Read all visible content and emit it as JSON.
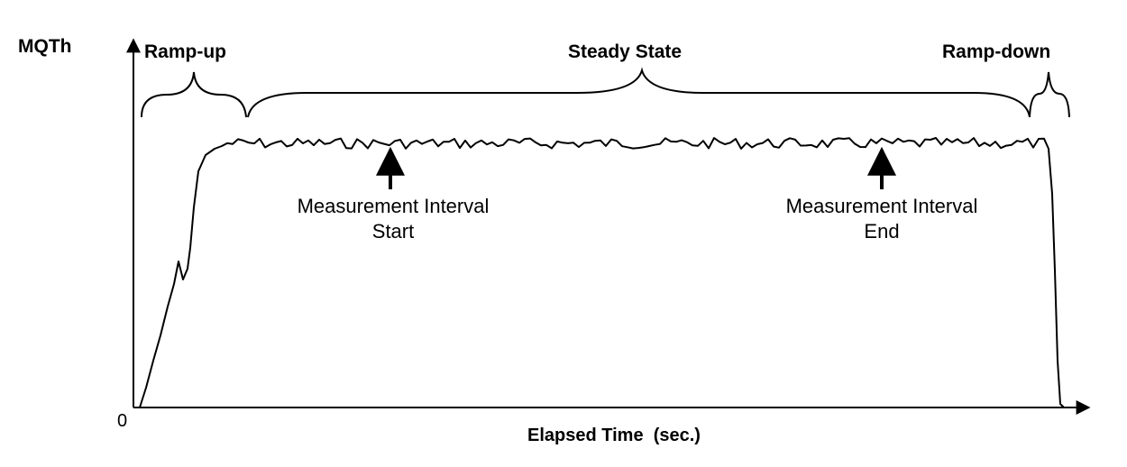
{
  "yaxis": {
    "label": "MQTh",
    "origin": "0"
  },
  "xaxis": {
    "label": "Elapsed Time  (sec.)"
  },
  "phases": {
    "ramp_up": "Ramp-up",
    "steady_state": "Steady State",
    "ramp_down": "Ramp-down"
  },
  "markers": {
    "start": {
      "line1": "Measurement Interval",
      "line2": "Start"
    },
    "end": {
      "line1": "Measurement Interval",
      "line2": "End"
    }
  },
  "colors": {
    "stroke": "#000000",
    "background": "#ffffff"
  }
}
